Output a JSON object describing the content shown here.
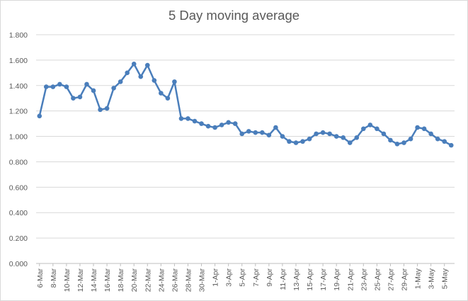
{
  "chart_data": {
    "type": "line",
    "title": "5 Day moving average",
    "xlabel": "",
    "ylabel": "",
    "ylim": [
      0,
      1.8
    ],
    "y_ticks": [
      "0.000",
      "0.200",
      "0.400",
      "0.600",
      "0.800",
      "1.000",
      "1.200",
      "1.400",
      "1.600",
      "1.800"
    ],
    "grid": "horizontal",
    "legend": "none",
    "line_color": "#4a7ebb",
    "x": [
      "6-Mar",
      "7-Mar",
      "8-Mar",
      "9-Mar",
      "10-Mar",
      "11-Mar",
      "12-Mar",
      "13-Mar",
      "14-Mar",
      "15-Mar",
      "16-Mar",
      "17-Mar",
      "18-Mar",
      "19-Mar",
      "20-Mar",
      "21-Mar",
      "22-Mar",
      "23-Mar",
      "24-Mar",
      "25-Mar",
      "26-Mar",
      "27-Mar",
      "28-Mar",
      "29-Mar",
      "30-Mar",
      "31-Mar",
      "1-Apr",
      "2-Apr",
      "3-Apr",
      "4-Apr",
      "5-Apr",
      "6-Apr",
      "7-Apr",
      "8-Apr",
      "9-Apr",
      "10-Apr",
      "11-Apr",
      "12-Apr",
      "13-Apr",
      "14-Apr",
      "15-Apr",
      "16-Apr",
      "17-Apr",
      "18-Apr",
      "19-Apr",
      "20-Apr",
      "21-Apr",
      "22-Apr",
      "23-Apr",
      "24-Apr",
      "25-Apr",
      "26-Apr",
      "27-Apr",
      "28-Apr",
      "29-Apr",
      "30-Apr",
      "1-May",
      "2-May",
      "3-May",
      "4-May",
      "5-May",
      "6-May"
    ],
    "x_tick_labels": [
      "6-Mar",
      "8-Mar",
      "10-Mar",
      "12-Mar",
      "14-Mar",
      "16-Mar",
      "18-Mar",
      "20-Mar",
      "22-Mar",
      "24-Mar",
      "26-Mar",
      "28-Mar",
      "30-Mar",
      "1-Apr",
      "3-Apr",
      "5-Apr",
      "7-Apr",
      "9-Apr",
      "11-Apr",
      "13-Apr",
      "15-Apr",
      "17-Apr",
      "19-Apr",
      "21-Apr",
      "23-Apr",
      "25-Apr",
      "27-Apr",
      "29-Apr",
      "1-May",
      "3-May",
      "5-May"
    ],
    "values": [
      1.16,
      1.39,
      1.39,
      1.41,
      1.39,
      1.3,
      1.31,
      1.41,
      1.36,
      1.21,
      1.22,
      1.38,
      1.43,
      1.5,
      1.57,
      1.47,
      1.56,
      1.44,
      1.34,
      1.3,
      1.43,
      1.14,
      1.14,
      1.12,
      1.1,
      1.08,
      1.07,
      1.09,
      1.11,
      1.1,
      1.02,
      1.04,
      1.03,
      1.03,
      1.01,
      1.07,
      1.0,
      0.96,
      0.95,
      0.96,
      0.98,
      1.02,
      1.03,
      1.02,
      1.0,
      0.99,
      0.95,
      0.99,
      1.06,
      1.09,
      1.06,
      1.02,
      0.97,
      0.94,
      0.95,
      0.98,
      1.07,
      1.06,
      1.02,
      0.98,
      0.96,
      0.93
    ]
  }
}
